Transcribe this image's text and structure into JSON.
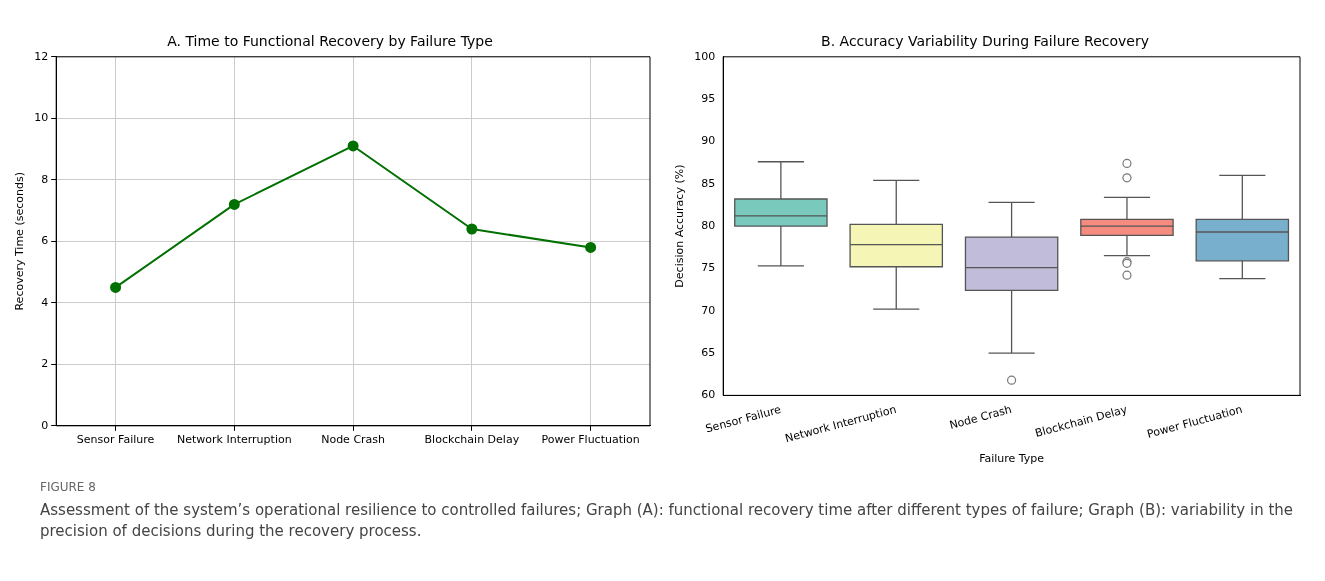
{
  "chart_data": [
    {
      "type": "line",
      "title": "A. Time to Functional Recovery by Failure Type",
      "ylabel": "Recovery Time (seconds)",
      "categories": [
        "Sensor Failure",
        "Network Interruption",
        "Node Crash",
        "Blockchain Delay",
        "Power Fluctuation"
      ],
      "series": [
        {
          "color": "#007000",
          "values": [
            4.5,
            7.2,
            9.1,
            6.4,
            5.8
          ]
        }
      ],
      "ylim": [
        0,
        12
      ],
      "yticks": [
        0,
        2,
        4,
        6,
        8,
        10,
        12
      ],
      "grid": true,
      "marker": "circle",
      "line_style": "solid"
    },
    {
      "type": "box",
      "title": "B. Accuracy Variability During Failure Recovery",
      "xlabel": "Failure Type",
      "ylabel": "Decision Accuracy (%)",
      "categories": [
        "Sensor Failure",
        "Network Interruption",
        "Node Crash",
        "Blockchain Delay",
        "Power Fluctuation"
      ],
      "colors": [
        "#79c9bc",
        "#f5f5b5",
        "#c0bcda",
        "#f68b80",
        "#78afcd"
      ],
      "boxes": [
        {
          "low": 75.3,
          "q1": 80.0,
          "median": 81.2,
          "q3": 83.2,
          "high": 87.6
        },
        {
          "low": 70.2,
          "q1": 75.2,
          "median": 77.8,
          "q3": 80.2,
          "high": 85.4
        },
        {
          "low": 65.0,
          "q1": 72.4,
          "median": 75.1,
          "q3": 78.7,
          "high": 82.8,
          "outliers": [
            61.8
          ]
        },
        {
          "low": 76.5,
          "q1": 78.9,
          "median": 80.0,
          "q3": 80.8,
          "high": 83.4,
          "outliers": [
            87.4,
            85.7,
            75.8,
            75.6,
            74.2
          ]
        },
        {
          "low": 73.8,
          "q1": 75.9,
          "median": 79.3,
          "q3": 80.8,
          "high": 86.0
        }
      ],
      "ylim": [
        60,
        100
      ],
      "yticks": [
        60,
        65,
        70,
        75,
        80,
        85,
        90,
        95,
        100
      ],
      "grid": false,
      "annotations": [
        "FIGURE 8",
        "Assessment of the system’s operational resilience to controlled failures; Graph (A): functional recovery time after different types of failure; Graph (B): variability in the precision of decisions during the recovery process."
      ]
    }
  ]
}
